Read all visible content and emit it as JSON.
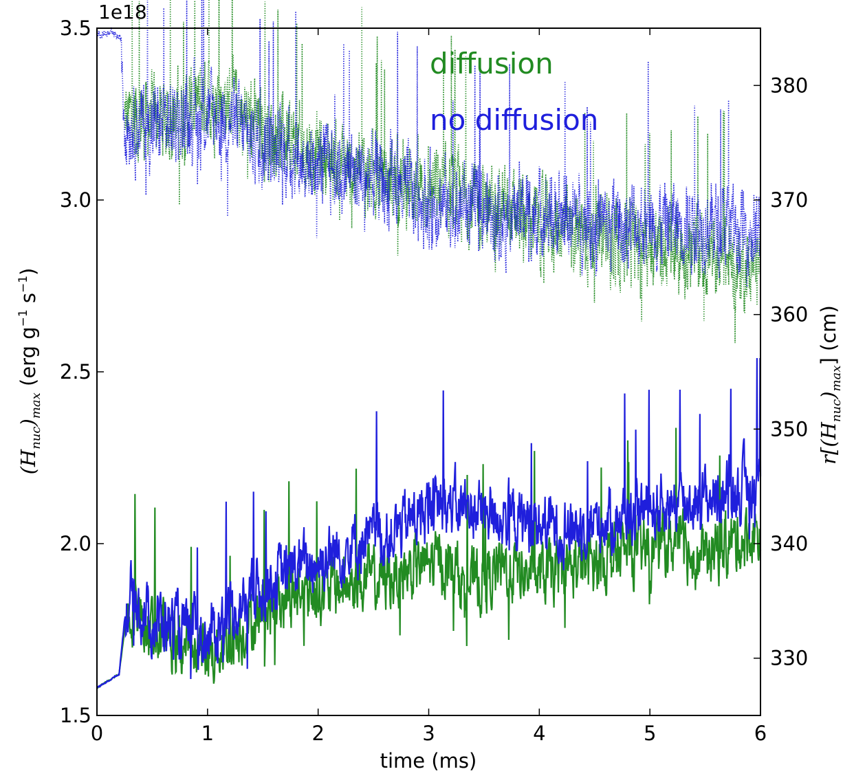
{
  "chart_data": {
    "type": "line",
    "xlabel": "time (ms)",
    "xlim": [
      0,
      6
    ],
    "x_ticks": [
      "0",
      "1",
      "2",
      "3",
      "4",
      "5",
      "6"
    ],
    "left_axis": {
      "label_math": "(H",
      "label_math_sub": "nuc",
      "label_math_tail": ")",
      "label_math_sub2": "max",
      "label_units": " (erg g",
      "label_units_sup1": "−1",
      "label_units_mid": " s",
      "label_units_sup2": "−1",
      "label_units_tail": ")",
      "ylim": [
        1.5,
        3.5
      ],
      "ticks": [
        "1.5",
        "2.0",
        "2.5",
        "3.0",
        "3.5"
      ],
      "offset_text": "1e18",
      "scale": 1e+18
    },
    "right_axis": {
      "label_prefix": "r[(H",
      "label_sub": "nuc",
      "label_mid": ")",
      "label_sub2": "max",
      "label_tail": "] (cm)",
      "ylim": [
        325,
        385
      ],
      "ticks": [
        "330",
        "340",
        "350",
        "360",
        "370",
        "380"
      ]
    },
    "legend": [
      {
        "name": "diffusion",
        "color": "#228b22"
      },
      {
        "name": "no diffusion",
        "color": "#1f1fdc"
      }
    ],
    "series": [
      {
        "name": "diffusion",
        "axis": "left",
        "style": "solid",
        "color": "#228b22",
        "x": [
          0,
          0.1,
          0.2,
          0.25,
          0.3,
          0.5,
          0.8,
          1.0,
          1.2,
          1.5,
          1.8,
          2.0,
          2.3,
          2.6,
          2.9,
          3.1,
          3.4,
          3.7,
          4.0,
          4.3,
          4.6,
          4.9,
          5.2,
          5.5,
          5.7,
          6.0
        ],
        "y": [
          1.58,
          1.6,
          1.62,
          1.75,
          1.82,
          1.75,
          1.7,
          1.68,
          1.72,
          1.8,
          1.85,
          1.86,
          1.88,
          1.9,
          1.93,
          1.95,
          1.88,
          1.93,
          1.9,
          1.93,
          1.96,
          1.98,
          2.0,
          1.96,
          2.0,
          2.03
        ]
      },
      {
        "name": "no diffusion",
        "axis": "left",
        "style": "solid",
        "color": "#1f1fdc",
        "x": [
          0,
          0.1,
          0.2,
          0.25,
          0.3,
          0.5,
          0.8,
          1.0,
          1.2,
          1.5,
          1.8,
          2.0,
          2.3,
          2.6,
          2.9,
          3.1,
          3.4,
          3.7,
          4.0,
          4.3,
          4.6,
          4.9,
          5.2,
          5.5,
          5.7,
          6.0
        ],
        "y": [
          1.58,
          1.6,
          1.62,
          1.78,
          1.85,
          1.78,
          1.75,
          1.72,
          1.8,
          1.88,
          1.93,
          1.95,
          2.0,
          2.02,
          2.08,
          2.12,
          2.1,
          2.08,
          2.05,
          2.05,
          2.07,
          2.1,
          2.12,
          2.13,
          2.15,
          2.18
        ]
      },
      {
        "name": "diffusion",
        "axis": "right",
        "style": "dotted",
        "color": "#228b22",
        "x": [
          0.25,
          0.5,
          0.8,
          1.0,
          1.2,
          1.5,
          2.0,
          2.5,
          3.0,
          3.5,
          4.0,
          4.5,
          5.0,
          5.5,
          6.0
        ],
        "y": [
          377,
          377,
          377.5,
          379,
          378.5,
          376,
          374,
          372,
          371,
          369.5,
          368,
          367,
          366,
          365,
          364
        ]
      },
      {
        "name": "no diffusion",
        "axis": "right",
        "style": "dotted",
        "color": "#1f1fdc",
        "x": [
          0,
          0.15,
          0.22,
          0.25,
          0.5,
          0.8,
          1.0,
          1.2,
          1.5,
          2.0,
          2.5,
          3.0,
          3.5,
          4.0,
          4.5,
          5.0,
          5.5,
          6.0
        ],
        "y": [
          384.5,
          384.5,
          384,
          377,
          376.5,
          377,
          377.5,
          377,
          375,
          373,
          372,
          370,
          369,
          369,
          368,
          368,
          368,
          367
        ]
      }
    ]
  }
}
